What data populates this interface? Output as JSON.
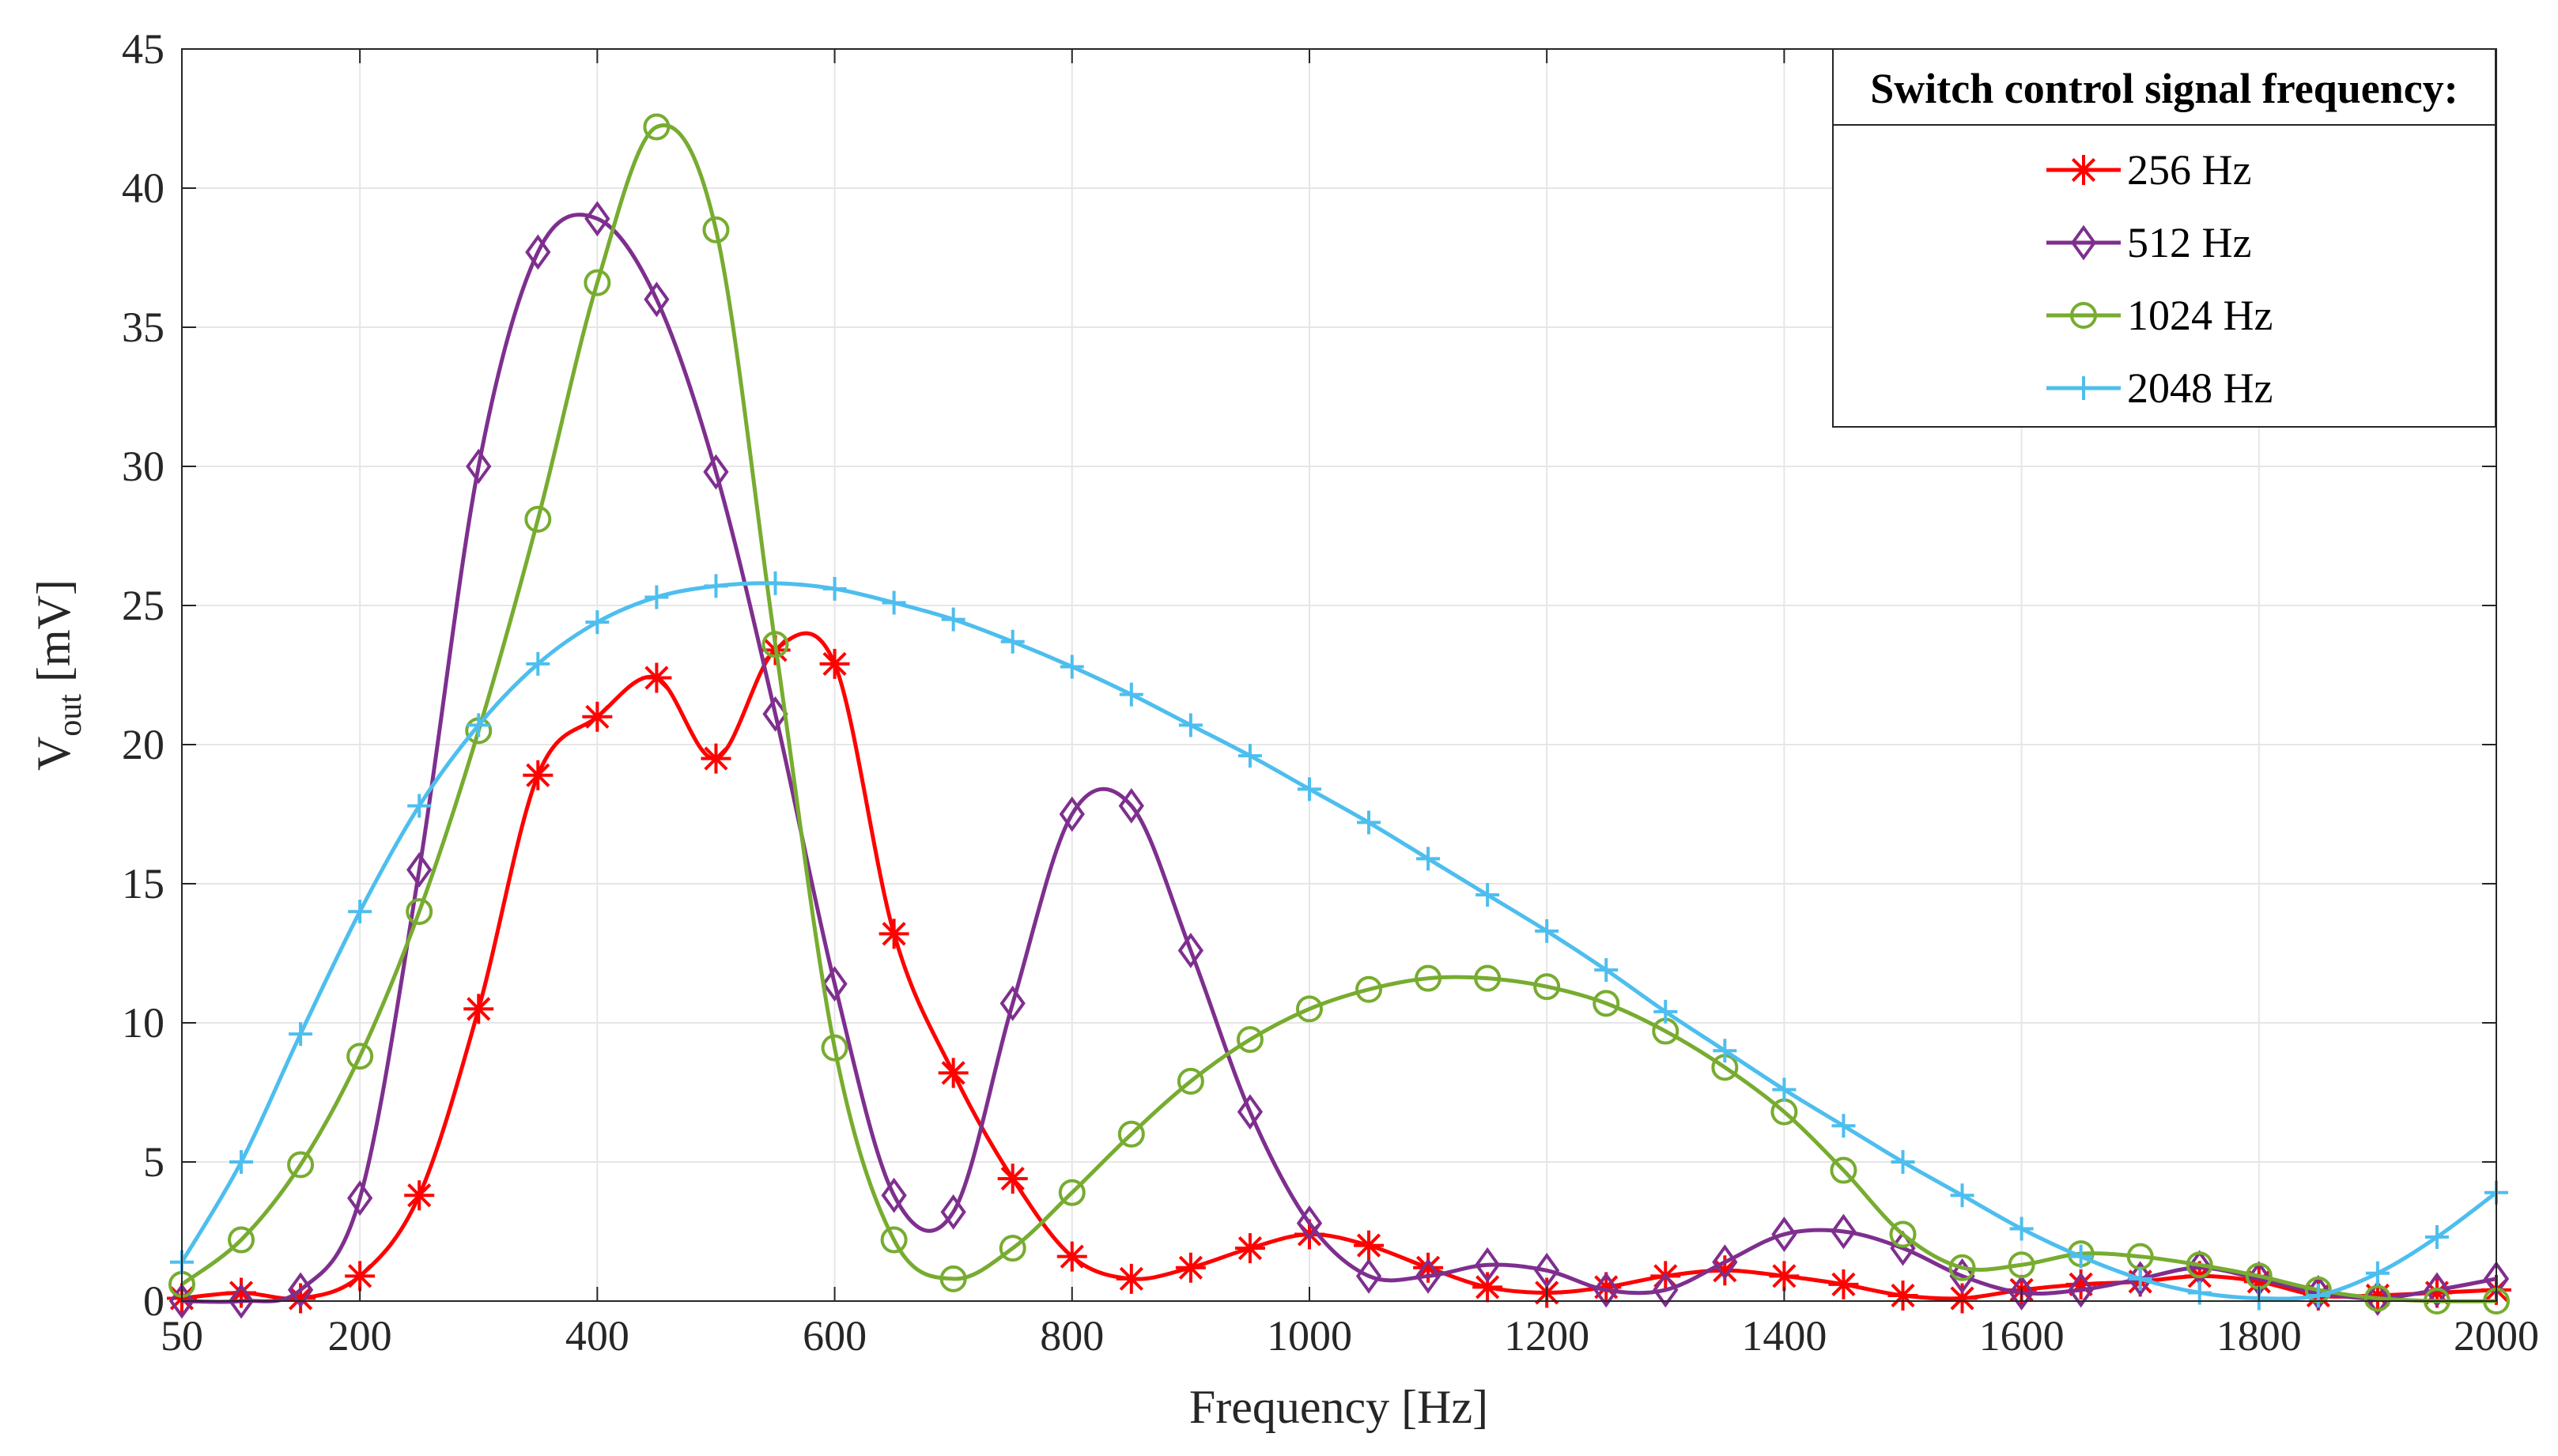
{
  "chart_data": {
    "type": "line",
    "title": "",
    "xlabel": "Frequency [Hz]",
    "ylabel": "V",
    "ylabel_sub": "out",
    "ylabel_unit": " [mV]",
    "xlim": [
      50,
      2000
    ],
    "ylim": [
      0,
      45
    ],
    "xticks": [
      50,
      200,
      400,
      600,
      800,
      1000,
      1200,
      1400,
      1600,
      1800,
      2000
    ],
    "yticks": [
      0,
      5,
      10,
      15,
      20,
      25,
      30,
      35,
      40,
      45
    ],
    "grid": true,
    "legend_title": "Switch control signal frequency:",
    "legend_position": "top-right",
    "x": [
      50,
      100,
      150,
      200,
      250,
      300,
      350,
      400,
      450,
      500,
      550,
      600,
      650,
      700,
      750,
      800,
      850,
      900,
      950,
      1000,
      1050,
      1100,
      1150,
      1200,
      1250,
      1300,
      1350,
      1400,
      1450,
      1500,
      1550,
      1600,
      1650,
      1700,
      1750,
      1800,
      1850,
      1900,
      1950,
      2000
    ],
    "series": [
      {
        "name": "256 Hz",
        "color": "#ff0000",
        "marker": "asterisk",
        "values": [
          0.1,
          0.3,
          0.1,
          0.9,
          3.8,
          10.5,
          18.9,
          21.0,
          22.4,
          19.5,
          23.4,
          22.9,
          13.2,
          8.2,
          4.4,
          1.6,
          0.8,
          1.2,
          1.9,
          2.4,
          2.0,
          1.2,
          0.5,
          0.3,
          0.5,
          0.9,
          1.1,
          0.9,
          0.6,
          0.2,
          0.1,
          0.4,
          0.6,
          0.7,
          0.9,
          0.7,
          0.2,
          0.2,
          0.3,
          0.4
        ]
      },
      {
        "name": "512 Hz",
        "color": "#7e2f8e",
        "marker": "diamond",
        "values": [
          0.0,
          0.0,
          0.4,
          3.7,
          15.5,
          30.0,
          37.7,
          38.9,
          36.0,
          29.8,
          21.1,
          11.4,
          3.8,
          3.2,
          10.7,
          17.5,
          17.8,
          12.6,
          6.8,
          2.8,
          0.9,
          0.9,
          1.3,
          1.1,
          0.4,
          0.4,
          1.4,
          2.4,
          2.5,
          1.9,
          0.9,
          0.3,
          0.4,
          0.8,
          1.2,
          0.8,
          0.3,
          0.1,
          0.4,
          0.8
        ]
      },
      {
        "name": "1024 Hz",
        "color": "#77ac30",
        "marker": "circle",
        "values": [
          0.6,
          2.2,
          4.9,
          8.8,
          14.0,
          20.5,
          28.1,
          36.6,
          42.2,
          38.5,
          23.6,
          9.1,
          2.2,
          0.8,
          1.9,
          3.9,
          6.0,
          7.9,
          9.4,
          10.5,
          11.2,
          11.6,
          11.6,
          11.3,
          10.7,
          9.7,
          8.4,
          6.8,
          4.7,
          2.4,
          1.2,
          1.3,
          1.7,
          1.6,
          1.3,
          0.9,
          0.4,
          0.1,
          0.0,
          0.0
        ]
      },
      {
        "name": "2048 Hz",
        "color": "#4dbeee",
        "marker": "plus",
        "values": [
          1.4,
          5.0,
          9.6,
          14.0,
          17.8,
          20.7,
          22.9,
          24.4,
          25.3,
          25.7,
          25.8,
          25.6,
          25.1,
          24.5,
          23.7,
          22.8,
          21.8,
          20.7,
          19.6,
          18.4,
          17.2,
          15.9,
          14.6,
          13.3,
          11.9,
          10.4,
          9.0,
          7.6,
          6.3,
          5.0,
          3.8,
          2.6,
          1.6,
          0.8,
          0.3,
          0.1,
          0.2,
          1.0,
          2.3,
          3.9
        ]
      }
    ]
  }
}
